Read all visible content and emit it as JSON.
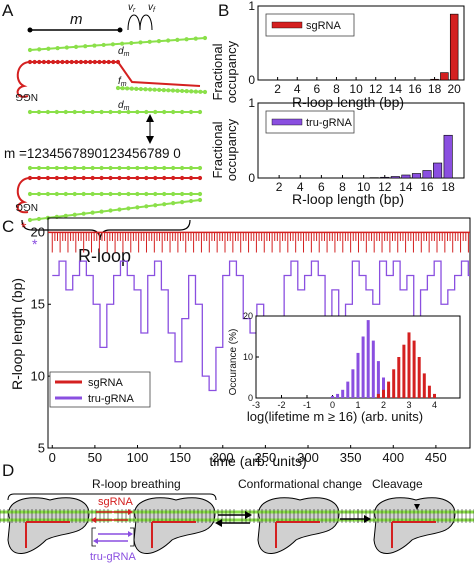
{
  "panel_letters": {
    "a": "A",
    "b": "B",
    "c": "C",
    "d": "D"
  },
  "panel_a": {
    "m_label": "m",
    "vf_label": "v",
    "vf_sub": "f",
    "vr_label": "v",
    "vr_sub": "r",
    "dm_label": "d",
    "dm_sub": "m",
    "fm_label": "f",
    "fm_sub": "m",
    "ngg_label": "NGG",
    "sequence_prefix": "m =",
    "sequence_digits": "1234567890123456789 0",
    "rloop_label": "R-loop"
  },
  "panel_b": {
    "ylabel_line1": "Fractional",
    "ylabel_line2": "occupancy",
    "xlabel": "R-loop length (bp)"
  },
  "panel_c": {
    "ylabel": "R-loop length (bp)",
    "xlabel": "time (arb. units)",
    "marker_sg": "*",
    "marker_tru": "*",
    "legend": [
      {
        "name": "sgRNA",
        "color": "#d42020"
      },
      {
        "name": "tru-gRNA",
        "color": "#8a4fe0"
      }
    ],
    "inset_ylabel": "Occurance (%)",
    "inset_xlabel": "log(lifetime m ≥ 16) (arb. units)"
  },
  "panel_d": {
    "stage1": "R-loop breathing",
    "stage2": "Conformational change",
    "stage3": "Cleavage",
    "sg_label": "sgRNA",
    "tru_label": "tru-gRNA"
  },
  "colors": {
    "sg": "#d42020",
    "tru": "#8a4fe0",
    "dna_green": "#8be04a",
    "gray": "#d0d0d0"
  },
  "chart_data": [
    {
      "type": "bar",
      "series": [
        {
          "name": "sgRNA",
          "color": "#d42020",
          "x": [
            18,
            19,
            20
          ],
          "values": [
            0.01,
            0.1,
            0.89
          ]
        }
      ],
      "xlim": [
        0,
        21
      ],
      "ylim": [
        0,
        1
      ],
      "xticks": [
        2,
        4,
        6,
        8,
        10,
        12,
        14,
        16,
        18,
        20
      ],
      "yticks": [
        0,
        1
      ],
      "xlabel": "R-loop length (bp)",
      "ylabel": "Fractional occupancy",
      "legend": "top-left"
    },
    {
      "type": "bar",
      "series": [
        {
          "name": "tru-gRNA",
          "color": "#8a4fe0",
          "x": [
            11,
            12,
            13,
            14,
            15,
            16,
            17,
            18
          ],
          "values": [
            0.005,
            0.01,
            0.02,
            0.04,
            0.06,
            0.1,
            0.2,
            0.57
          ]
        }
      ],
      "xlim": [
        0,
        19.5
      ],
      "ylim": [
        0,
        1
      ],
      "xticks": [
        2,
        4,
        6,
        8,
        10,
        12,
        14,
        16,
        18
      ],
      "yticks": [
        0,
        1
      ],
      "xlabel": "R-loop length (bp)",
      "ylabel": "Fractional occupancy",
      "legend": "top-left"
    },
    {
      "type": "line",
      "series": [
        {
          "name": "sgRNA",
          "color": "#d42020",
          "x": [
            0,
            10,
            20,
            30,
            40,
            50,
            60,
            70,
            80,
            90,
            100,
            110,
            120,
            130,
            140,
            150,
            160,
            170,
            180,
            190,
            200,
            210,
            220,
            230,
            240,
            250,
            260,
            270,
            280,
            290,
            300,
            310,
            320,
            330,
            340,
            350,
            360,
            370,
            380,
            390,
            400,
            410,
            420,
            430,
            440,
            450,
            460,
            470,
            480,
            490
          ],
          "values": [
            20,
            19,
            20,
            19,
            20,
            20,
            19,
            20,
            20,
            19,
            20,
            20,
            19,
            20,
            20,
            19,
            20,
            20,
            19,
            20,
            20,
            19,
            20,
            20,
            19,
            20,
            20,
            19,
            20,
            20,
            19,
            20,
            20,
            19,
            20,
            20,
            19,
            20,
            20,
            19,
            20,
            20,
            19,
            20,
            20,
            19,
            20,
            20,
            19,
            20
          ]
        },
        {
          "name": "tru-gRNA",
          "color": "#8a4fe0",
          "x": [
            0,
            8,
            16,
            24,
            32,
            40,
            48,
            56,
            64,
            72,
            80,
            88,
            96,
            104,
            112,
            120,
            128,
            136,
            144,
            152,
            160,
            168,
            176,
            184,
            192,
            200,
            208,
            216,
            224,
            232,
            240,
            248,
            256,
            264,
            272,
            280,
            288,
            296,
            304,
            312,
            320,
            328,
            336,
            344,
            352,
            360,
            368,
            376,
            384,
            392,
            400,
            408,
            416,
            424,
            432,
            440,
            448,
            456,
            464,
            472,
            480,
            488
          ],
          "values": [
            17,
            18,
            16,
            17,
            18,
            17,
            15,
            12,
            15,
            17,
            18,
            17,
            16,
            13,
            17,
            18,
            16,
            13,
            11,
            14,
            17,
            15,
            10,
            9,
            12,
            17,
            18,
            17,
            14,
            13,
            15,
            12,
            11,
            14,
            17,
            18,
            16,
            17,
            18,
            17,
            14,
            16,
            13,
            15,
            18,
            17,
            16,
            15,
            18,
            17,
            18,
            16,
            17,
            13,
            16,
            17,
            18,
            15,
            16,
            17,
            18,
            17
          ]
        }
      ],
      "xlim": [
        -5,
        490
      ],
      "ylim": [
        5,
        21
      ],
      "xticks": [
        0,
        50,
        100,
        150,
        200,
        250,
        300,
        350,
        400,
        450
      ],
      "yticks": [
        5,
        10,
        15,
        20
      ],
      "xlabel": "time (arb. units)",
      "ylabel": "R-loop length (bp)",
      "legend": "bottom-left"
    },
    {
      "type": "bar",
      "title": "inset",
      "series": [
        {
          "name": "tru-gRNA",
          "color": "#8a4fe0",
          "x": [
            0.0,
            0.2,
            0.4,
            0.6,
            0.8,
            1.0,
            1.2,
            1.4,
            1.6,
            1.8,
            2.0,
            2.2
          ],
          "values": [
            0.5,
            1,
            2,
            4,
            7,
            11,
            15,
            19,
            14,
            9,
            5,
            2
          ]
        },
        {
          "name": "sgRNA",
          "color": "#d42020",
          "x": [
            1.8,
            2.0,
            2.2,
            2.4,
            2.6,
            2.8,
            3.0,
            3.2,
            3.4,
            3.6,
            3.8,
            4.0
          ],
          "values": [
            1,
            2,
            4,
            7,
            10,
            13,
            16,
            14,
            10,
            6,
            3,
            1
          ]
        }
      ],
      "xlim": [
        -3,
        5
      ],
      "ylim": [
        0,
        20
      ],
      "xticks": [
        -3,
        -2,
        -1,
        0,
        1,
        2,
        3,
        4
      ],
      "yticks": [
        0,
        10,
        20
      ],
      "xlabel": "log(lifetime m ≥ 16) (arb. units)",
      "ylabel": "Occurance (%)"
    }
  ]
}
